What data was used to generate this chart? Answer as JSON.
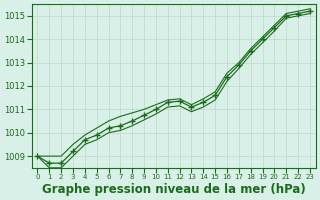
{
  "title": "Graphe pression niveau de la mer (hPa)",
  "x": [
    0,
    1,
    2,
    3,
    4,
    5,
    6,
    7,
    8,
    9,
    10,
    11,
    12,
    13,
    14,
    15,
    16,
    17,
    18,
    19,
    20,
    21,
    22,
    23
  ],
  "y_main": [
    1009.0,
    1008.7,
    1008.7,
    1009.2,
    1009.7,
    1009.9,
    1010.2,
    1010.3,
    1010.5,
    1010.75,
    1011.0,
    1011.3,
    1011.35,
    1011.1,
    1011.3,
    1011.6,
    1012.4,
    1012.9,
    1013.5,
    1014.0,
    1014.5,
    1015.0,
    1015.1,
    1015.2
  ],
  "y_upper": [
    1009.0,
    1009.0,
    1009.0,
    1009.5,
    1009.9,
    1010.2,
    1010.5,
    1010.7,
    1010.85,
    1011.0,
    1011.2,
    1011.4,
    1011.45,
    1011.2,
    1011.45,
    1011.75,
    1012.55,
    1013.0,
    1013.6,
    1014.1,
    1014.6,
    1015.1,
    1015.2,
    1015.3
  ],
  "y_lower": [
    1009.0,
    1008.5,
    1008.5,
    1009.0,
    1009.5,
    1009.7,
    1010.0,
    1010.1,
    1010.3,
    1010.55,
    1010.8,
    1011.1,
    1011.15,
    1010.9,
    1011.1,
    1011.4,
    1012.2,
    1012.75,
    1013.35,
    1013.85,
    1014.35,
    1014.9,
    1015.0,
    1015.1
  ],
  "line_color": "#1a6b1a",
  "marker_color": "#1a6b1a",
  "bg_color": "#d8f0e8",
  "grid_color": "#c0d8c8",
  "label_color": "#1a6b1a",
  "ylim_min": 1008.5,
  "ylim_max": 1015.5,
  "yticks": [
    1009,
    1010,
    1011,
    1012,
    1013,
    1014,
    1015
  ],
  "xlim_min": -0.5,
  "xlim_max": 23.5,
  "title_fontsize": 8.5
}
